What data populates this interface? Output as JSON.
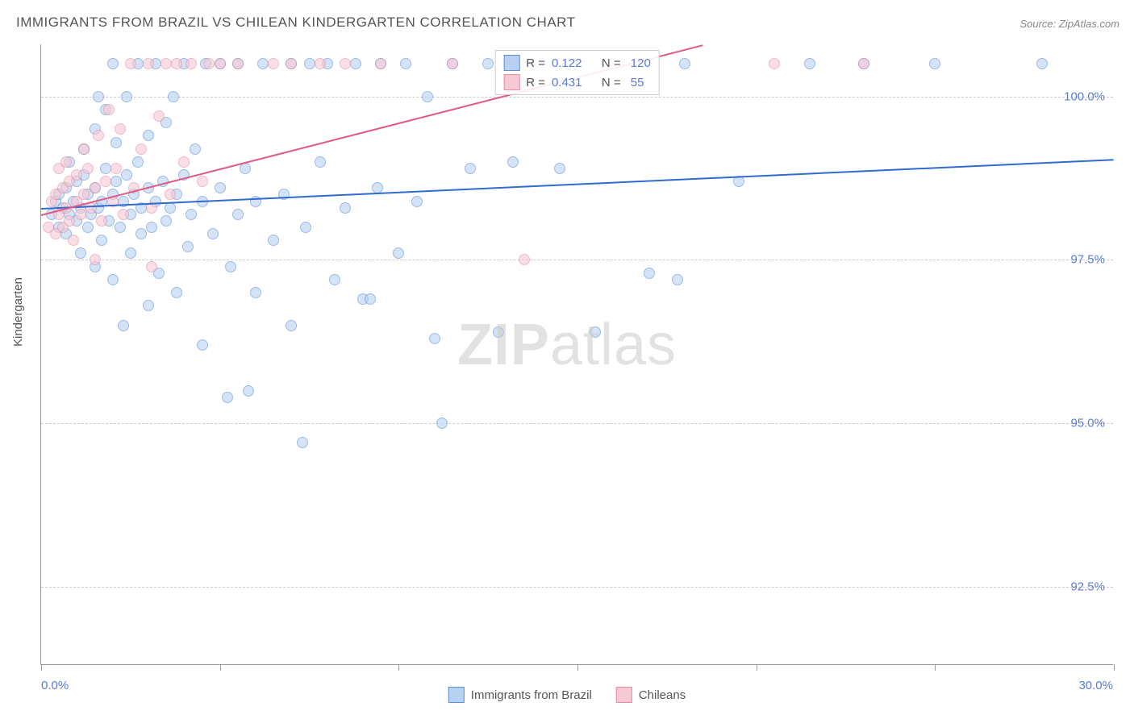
{
  "title": "IMMIGRANTS FROM BRAZIL VS CHILEAN KINDERGARTEN CORRELATION CHART",
  "source": "Source: ZipAtlas.com",
  "y_axis_label": "Kindergarten",
  "watermark_bold": "ZIP",
  "watermark_rest": "atlas",
  "chart": {
    "type": "scatter",
    "background_color": "#ffffff",
    "grid_color": "#cccccc",
    "axis_color": "#999999",
    "tick_label_color": "#5b7bd5",
    "label_color": "#555555",
    "marker_radius": 7,
    "xlim": [
      0,
      30
    ],
    "ylim": [
      91.3,
      100.8
    ],
    "x_ticks": [
      0,
      5,
      10,
      15,
      20,
      25,
      30
    ],
    "x_tick_labels": {
      "start": "0.0%",
      "end": "30.0%"
    },
    "y_ticks": [
      92.5,
      95.0,
      97.5,
      100.0
    ],
    "y_tick_labels": [
      "92.5%",
      "95.0%",
      "97.5%",
      "100.0%"
    ],
    "series": [
      {
        "name": "Immigrants from Brazil",
        "fill": "#b9d1f0",
        "stroke": "#5a8fd6",
        "fill_opacity": 0.6,
        "trend": {
          "x1": 0,
          "y1": 98.3,
          "x2": 30,
          "y2": 99.05,
          "color": "#2f6bd0",
          "width": 2
        },
        "stats": {
          "R_label": "R =",
          "R": "0.122",
          "N_label": "N =",
          "N": "120"
        },
        "points": [
          [
            0.3,
            98.2
          ],
          [
            0.4,
            98.4
          ],
          [
            0.5,
            98.0
          ],
          [
            0.5,
            98.5
          ],
          [
            0.6,
            98.3
          ],
          [
            0.7,
            97.9
          ],
          [
            0.7,
            98.6
          ],
          [
            0.8,
            98.2
          ],
          [
            0.8,
            99.0
          ],
          [
            0.9,
            98.4
          ],
          [
            1.0,
            98.1
          ],
          [
            1.0,
            98.7
          ],
          [
            1.1,
            97.6
          ],
          [
            1.1,
            98.3
          ],
          [
            1.2,
            98.8
          ],
          [
            1.2,
            99.2
          ],
          [
            1.3,
            98.0
          ],
          [
            1.3,
            98.5
          ],
          [
            1.4,
            98.2
          ],
          [
            1.5,
            97.4
          ],
          [
            1.5,
            98.6
          ],
          [
            1.5,
            99.5
          ],
          [
            1.6,
            98.3
          ],
          [
            1.6,
            100.0
          ],
          [
            1.7,
            97.8
          ],
          [
            1.7,
            98.4
          ],
          [
            1.8,
            98.9
          ],
          [
            1.8,
            99.8
          ],
          [
            1.9,
            98.1
          ],
          [
            2.0,
            97.2
          ],
          [
            2.0,
            98.5
          ],
          [
            2.0,
            100.5
          ],
          [
            2.1,
            98.7
          ],
          [
            2.1,
            99.3
          ],
          [
            2.2,
            98.0
          ],
          [
            2.3,
            96.5
          ],
          [
            2.3,
            98.4
          ],
          [
            2.4,
            98.8
          ],
          [
            2.4,
            100.0
          ],
          [
            2.5,
            97.6
          ],
          [
            2.5,
            98.2
          ],
          [
            2.6,
            98.5
          ],
          [
            2.7,
            99.0
          ],
          [
            2.7,
            100.5
          ],
          [
            2.8,
            97.9
          ],
          [
            2.8,
            98.3
          ],
          [
            3.0,
            96.8
          ],
          [
            3.0,
            98.6
          ],
          [
            3.0,
            99.4
          ],
          [
            3.1,
            98.0
          ],
          [
            3.2,
            98.4
          ],
          [
            3.2,
            100.5
          ],
          [
            3.3,
            97.3
          ],
          [
            3.4,
            98.7
          ],
          [
            3.5,
            98.1
          ],
          [
            3.5,
            99.6
          ],
          [
            3.6,
            98.3
          ],
          [
            3.7,
            100.0
          ],
          [
            3.8,
            97.0
          ],
          [
            3.8,
            98.5
          ],
          [
            4.0,
            100.5
          ],
          [
            4.0,
            98.8
          ],
          [
            4.1,
            97.7
          ],
          [
            4.2,
            98.2
          ],
          [
            4.3,
            99.2
          ],
          [
            4.5,
            96.2
          ],
          [
            4.5,
            98.4
          ],
          [
            4.6,
            100.5
          ],
          [
            4.8,
            97.9
          ],
          [
            5.0,
            98.6
          ],
          [
            5.0,
            100.5
          ],
          [
            5.2,
            95.4
          ],
          [
            5.3,
            97.4
          ],
          [
            5.5,
            98.2
          ],
          [
            5.5,
            100.5
          ],
          [
            5.7,
            98.9
          ],
          [
            5.8,
            95.5
          ],
          [
            6.0,
            97.0
          ],
          [
            6.0,
            98.4
          ],
          [
            6.2,
            100.5
          ],
          [
            6.5,
            97.8
          ],
          [
            6.8,
            98.5
          ],
          [
            7.0,
            100.5
          ],
          [
            7.0,
            96.5
          ],
          [
            7.3,
            94.7
          ],
          [
            7.4,
            98.0
          ],
          [
            7.5,
            100.5
          ],
          [
            7.8,
            99.0
          ],
          [
            8.0,
            100.5
          ],
          [
            8.2,
            97.2
          ],
          [
            8.5,
            98.3
          ],
          [
            8.8,
            100.5
          ],
          [
            9.0,
            96.9
          ],
          [
            9.2,
            96.9
          ],
          [
            9.4,
            98.6
          ],
          [
            9.5,
            100.5
          ],
          [
            10.0,
            97.6
          ],
          [
            10.2,
            100.5
          ],
          [
            10.5,
            98.4
          ],
          [
            10.8,
            100.0
          ],
          [
            11.0,
            96.3
          ],
          [
            11.2,
            95.0
          ],
          [
            11.5,
            100.5
          ],
          [
            12.0,
            98.9
          ],
          [
            12.5,
            100.5
          ],
          [
            12.8,
            96.4
          ],
          [
            13.2,
            99.0
          ],
          [
            14.0,
            100.5
          ],
          [
            14.5,
            98.9
          ],
          [
            15.5,
            96.4
          ],
          [
            16.0,
            100.5
          ],
          [
            17.0,
            97.3
          ],
          [
            17.8,
            97.2
          ],
          [
            18.0,
            100.5
          ],
          [
            19.5,
            98.7
          ],
          [
            21.5,
            100.5
          ],
          [
            23.0,
            100.5
          ],
          [
            25.0,
            100.5
          ],
          [
            28.0,
            100.5
          ]
        ]
      },
      {
        "name": "Chileans",
        "fill": "#f7c9d4",
        "stroke": "#e88ca5",
        "fill_opacity": 0.6,
        "trend": {
          "x1": 0,
          "y1": 98.2,
          "x2": 18.5,
          "y2": 100.8,
          "color": "#e05a86",
          "width": 2
        },
        "stats": {
          "R_label": "R =",
          "R": "0.431",
          "N_label": "N =",
          "N": "55"
        },
        "points": [
          [
            0.2,
            98.0
          ],
          [
            0.3,
            98.4
          ],
          [
            0.4,
            97.9
          ],
          [
            0.4,
            98.5
          ],
          [
            0.5,
            98.2
          ],
          [
            0.5,
            98.9
          ],
          [
            0.6,
            98.0
          ],
          [
            0.6,
            98.6
          ],
          [
            0.7,
            98.3
          ],
          [
            0.7,
            99.0
          ],
          [
            0.8,
            98.1
          ],
          [
            0.8,
            98.7
          ],
          [
            0.9,
            97.8
          ],
          [
            1.0,
            98.4
          ],
          [
            1.0,
            98.8
          ],
          [
            1.1,
            98.2
          ],
          [
            1.2,
            99.2
          ],
          [
            1.2,
            98.5
          ],
          [
            1.3,
            98.9
          ],
          [
            1.4,
            98.3
          ],
          [
            1.5,
            97.5
          ],
          [
            1.5,
            98.6
          ],
          [
            1.6,
            99.4
          ],
          [
            1.7,
            98.1
          ],
          [
            1.8,
            98.7
          ],
          [
            1.9,
            99.8
          ],
          [
            2.0,
            98.4
          ],
          [
            2.1,
            98.9
          ],
          [
            2.2,
            99.5
          ],
          [
            2.3,
            98.2
          ],
          [
            2.5,
            100.5
          ],
          [
            2.6,
            98.6
          ],
          [
            2.8,
            99.2
          ],
          [
            3.0,
            100.5
          ],
          [
            3.1,
            97.4
          ],
          [
            3.1,
            98.3
          ],
          [
            3.3,
            99.7
          ],
          [
            3.5,
            100.5
          ],
          [
            3.6,
            98.5
          ],
          [
            3.8,
            100.5
          ],
          [
            4.0,
            99.0
          ],
          [
            4.2,
            100.5
          ],
          [
            4.5,
            98.7
          ],
          [
            4.7,
            100.5
          ],
          [
            5.0,
            100.5
          ],
          [
            5.5,
            100.5
          ],
          [
            6.5,
            100.5
          ],
          [
            7.0,
            100.5
          ],
          [
            7.8,
            100.5
          ],
          [
            8.5,
            100.5
          ],
          [
            9.5,
            100.5
          ],
          [
            11.5,
            100.5
          ],
          [
            13.5,
            97.5
          ],
          [
            20.5,
            100.5
          ],
          [
            23.0,
            100.5
          ]
        ]
      }
    ]
  },
  "legend": {
    "item1": "Immigrants from Brazil",
    "item2": "Chileans"
  }
}
